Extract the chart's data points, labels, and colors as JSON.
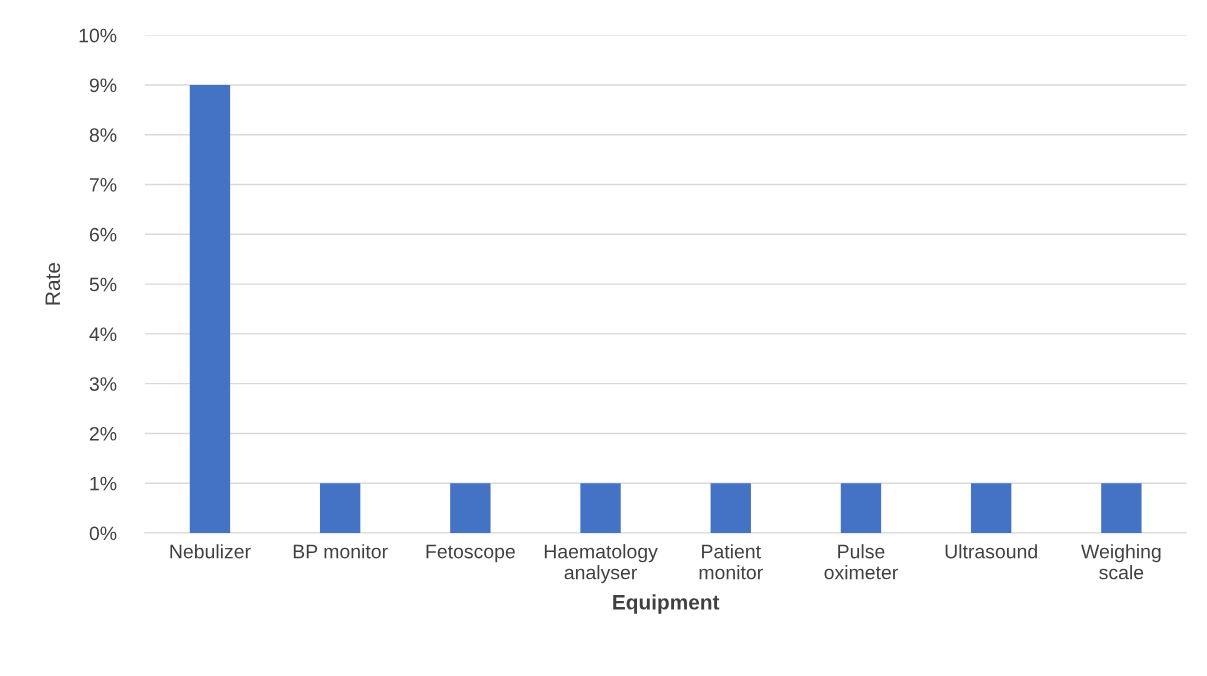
{
  "chart_data": {
    "type": "bar",
    "xlabel": "Equipment",
    "ylabel": "Rate",
    "categories": [
      "Nebulizer",
      "BP monitor",
      "Fetoscope",
      "Haematology\nanalyser",
      "Patient\nmonitor",
      "Pulse\noximeter",
      "Ultrasound",
      "Weighing\nscale"
    ],
    "values": [
      9,
      1,
      1,
      1,
      1,
      1,
      1,
      1
    ],
    "color": "#4472c4",
    "ylim": [
      0,
      10
    ],
    "yticks": [
      {
        "value": 0,
        "label": "0%"
      },
      {
        "value": 1,
        "label": "1%"
      },
      {
        "value": 2,
        "label": "2%"
      },
      {
        "value": 3,
        "label": "3%"
      },
      {
        "value": 4,
        "label": "4%"
      },
      {
        "value": 5,
        "label": "5%"
      },
      {
        "value": 6,
        "label": "6%"
      },
      {
        "value": 7,
        "label": "7%"
      },
      {
        "value": 8,
        "label": "8%"
      },
      {
        "value": 9,
        "label": "9%"
      },
      {
        "value": 10,
        "label": "10%"
      }
    ],
    "grid": "y"
  }
}
